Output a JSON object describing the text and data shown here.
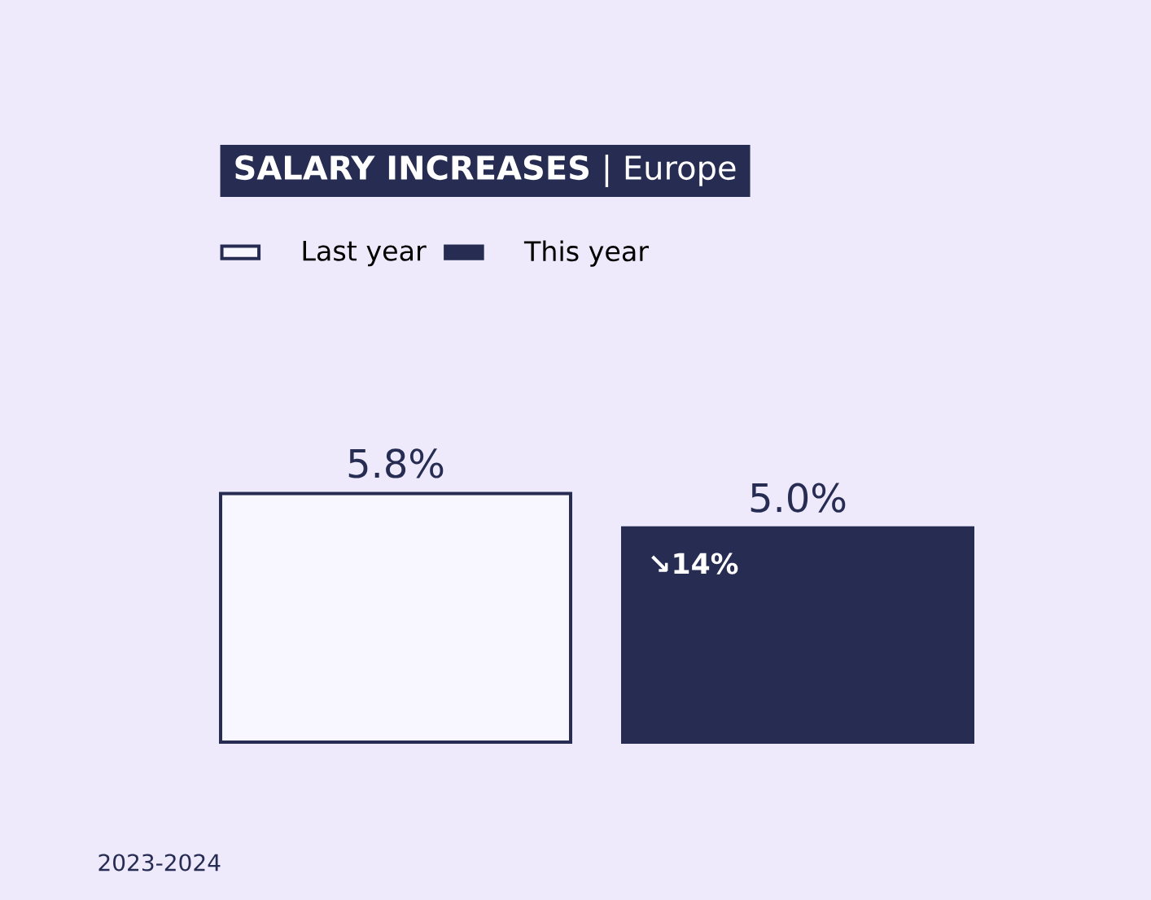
{
  "chart_data": {
    "type": "bar",
    "title": "**SALARY INCREASES** | Europe",
    "categories": [
      null
    ],
    "series": [
      {
        "name": "Last year",
        "color": "#f8f6fe",
        "values": [
          5.8
        ],
        "value_labels": [
          "5.8%"
        ]
      },
      {
        "name": "This year",
        "color": "#272c52",
        "values": [
          5.0
        ],
        "value_labels": [
          "5.0%"
        ]
      }
    ],
    "annotations": [
      "↘14%",
      "2023-2024"
    ],
    "legend": "top left"
  }
}
